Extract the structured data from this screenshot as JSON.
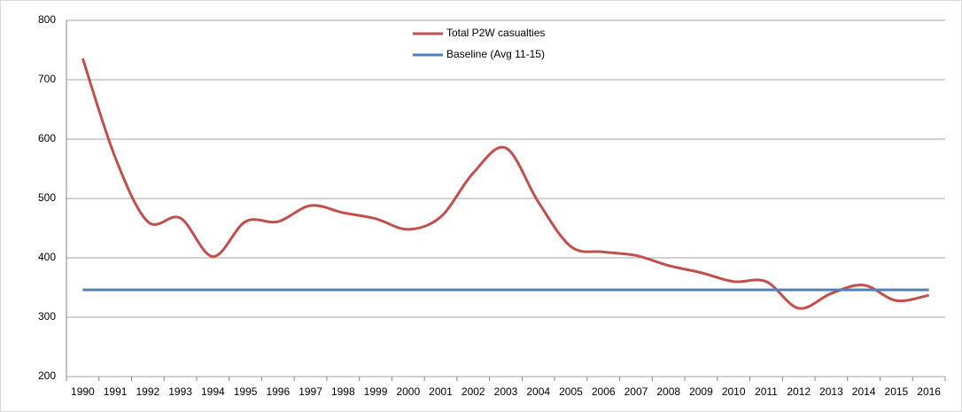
{
  "chart_data": {
    "type": "line",
    "categories": [
      "1990",
      "1991",
      "1992",
      "1993",
      "1994",
      "1995",
      "1996",
      "1997",
      "1998",
      "1999",
      "2000",
      "2001",
      "2002",
      "2003",
      "2004",
      "2005",
      "2006",
      "2007",
      "2008",
      "2009",
      "2010",
      "2011",
      "2012",
      "2013",
      "2014",
      "2015",
      "2016"
    ],
    "series": [
      {
        "name": "Total P2W casualties",
        "color": "#c0504d",
        "smooth": true,
        "values": [
          736,
          569,
          461,
          467,
          402,
          461,
          461,
          488,
          476,
          466,
          448,
          469,
          543,
          585,
          494,
          419,
          410,
          404,
          387,
          375,
          360,
          360,
          315,
          340,
          354,
          328,
          337
        ]
      },
      {
        "name": "Baseline (Avg 11-15)",
        "color": "#4f81bd",
        "smooth": false,
        "values": [
          346,
          346,
          346,
          346,
          346,
          346,
          346,
          346,
          346,
          346,
          346,
          346,
          346,
          346,
          346,
          346,
          346,
          346,
          346,
          346,
          346,
          346,
          346,
          346,
          346,
          346,
          346
        ]
      }
    ],
    "ylim": [
      200,
      800
    ],
    "yticks": [
      200,
      300,
      400,
      500,
      600,
      700,
      800
    ],
    "grid": true,
    "legend": "top"
  }
}
